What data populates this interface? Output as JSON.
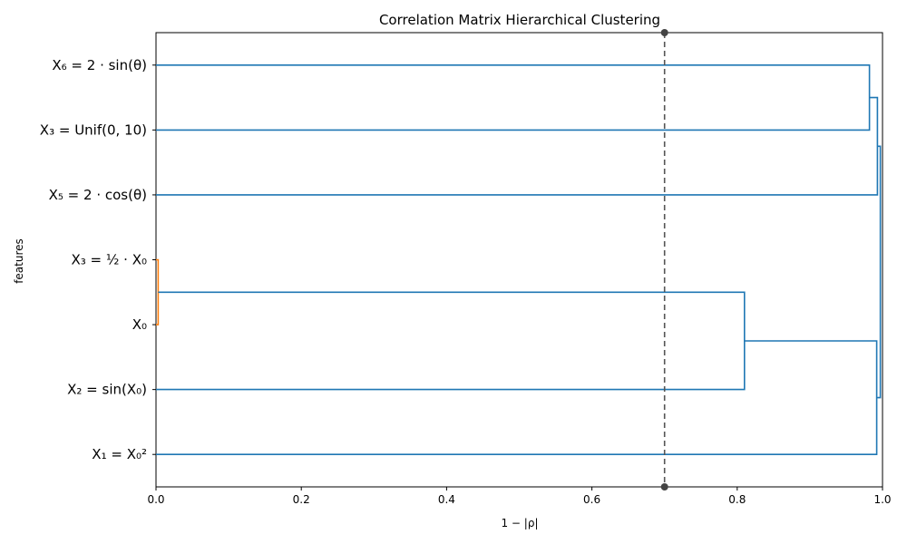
{
  "chart_data": {
    "type": "dendrogram",
    "title": "Correlation Matrix Hierarchical Clustering",
    "xlabel": "1 − |ρ|",
    "ylabel": "features",
    "xlim": [
      0,
      1
    ],
    "xticks": [
      "0.0",
      "0.2",
      "0.4",
      "0.6",
      "0.8",
      "1.0"
    ],
    "xtick_values": [
      0,
      0.2,
      0.4,
      0.6,
      0.8,
      1.0
    ],
    "grid": false,
    "orientation": "horizontal",
    "leaves": [
      "X₆ = 2 · sin(θ)",
      "X₃ = Unif(0, 10)",
      "X₅ = 2 · cos(θ)",
      "X₃ = ½ · X₀",
      "X₀",
      "X₂ = sin(X₀)",
      "X₁ = X₀²"
    ],
    "merges": [
      {
        "left": 3,
        "right": 4,
        "distance": 0.003,
        "color": "#ff7f0e"
      },
      {
        "left": "m0",
        "right": 5,
        "distance": 0.81,
        "color": "#1f77b4"
      },
      {
        "left": "m1",
        "right": 6,
        "distance": 0.992,
        "color": "#1f77b4"
      },
      {
        "left": 0,
        "right": 1,
        "distance": 0.982,
        "color": "#1f77b4"
      },
      {
        "left": "m3",
        "right": 2,
        "distance": 0.993,
        "color": "#1f77b4"
      },
      {
        "left": "m4",
        "right": "m2",
        "distance": 0.997,
        "color": "#1f77b4"
      }
    ],
    "threshold": 0.7,
    "threshold_color": "#555555"
  }
}
